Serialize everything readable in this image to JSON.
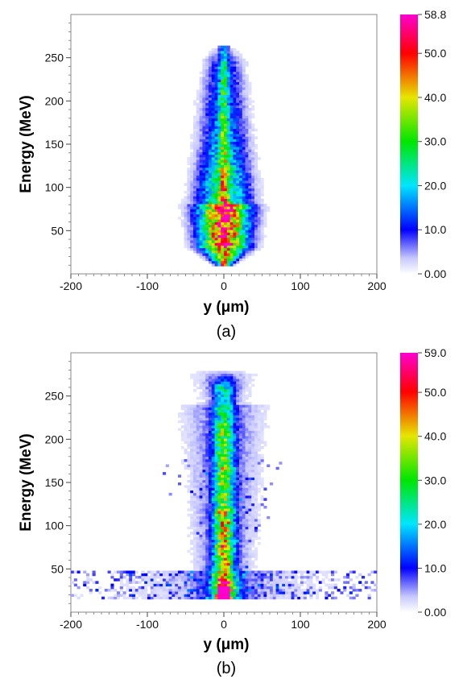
{
  "chart_data": [
    {
      "type": "heatmap",
      "caption": "(a)",
      "xlabel": "y (μm)",
      "ylabel": "Energy (MeV)",
      "xlim": [
        -200,
        200
      ],
      "ylim": [
        0,
        300
      ],
      "xticks": [
        -200,
        -100,
        0,
        100,
        200
      ],
      "yticks": [
        50,
        100,
        150,
        200,
        250
      ],
      "colorbar": {
        "min": 0.0,
        "max": 58.8,
        "tick_values": [
          0,
          10,
          20,
          30,
          40,
          50,
          58.8
        ],
        "tick_labels": [
          "0.00",
          "10.0",
          "20.0",
          "30.0",
          "40.0",
          "50.0",
          "58.8"
        ]
      },
      "structure": {
        "core_center_y_um": 0,
        "energy_range_mev": [
          8,
          262
        ],
        "peak_density_energy_mev": 50,
        "peak_counts": 58.8,
        "width_at_50_mev_um": 40,
        "width_at_250_mev_um": 28,
        "halo": false
      }
    },
    {
      "type": "heatmap",
      "caption": "(b)",
      "xlabel": "y (μm)",
      "ylabel": "Energy (MeV)",
      "xlim": [
        -200,
        200
      ],
      "ylim": [
        0,
        300
      ],
      "xticks": [
        -200,
        -100,
        0,
        100,
        200
      ],
      "yticks": [
        50,
        100,
        150,
        200,
        250
      ],
      "colorbar": {
        "min": 0.0,
        "max": 59.0,
        "tick_values": [
          0,
          10,
          20,
          30,
          40,
          50,
          59.0
        ],
        "tick_labels": [
          "0.00",
          "10.0",
          "20.0",
          "30.0",
          "40.0",
          "50.0",
          "59.0"
        ]
      },
      "structure": {
        "core_center_y_um": 0,
        "energy_range_mev": [
          15,
          275
        ],
        "peak_density_energy_mev": 25,
        "peak_counts": 59.0,
        "width_at_50_mev_um": 20,
        "width_at_250_mev_um": 18,
        "halo": true,
        "low_energy_band_mev": [
          15,
          45
        ]
      }
    }
  ]
}
